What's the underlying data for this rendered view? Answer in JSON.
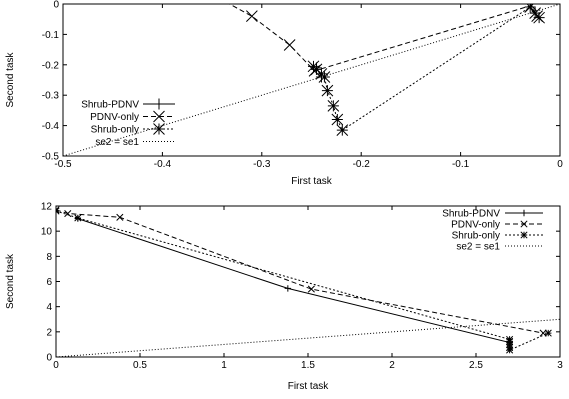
{
  "chart_data": [
    {
      "type": "line",
      "xlabel": "First task",
      "ylabel": "Second task",
      "xlim": [
        -0.5,
        0
      ],
      "ylim": [
        -0.5,
        0
      ],
      "x_ticks": [
        -0.5,
        -0.4,
        -0.3,
        -0.2,
        -0.1,
        0
      ],
      "x_tick_labels": [
        "-0.5",
        "-0.4",
        "-0.3",
        "-0.2",
        "-0.1",
        "0"
      ],
      "y_ticks": [
        -0.5,
        -0.4,
        -0.3,
        -0.2,
        -0.1,
        0
      ],
      "y_tick_labels": [
        "-0.5",
        "-0.4",
        "-0.3",
        "-0.2",
        "-0.1",
        "0"
      ],
      "legend_position": "left",
      "series": [
        {
          "name": "Shrub-PDNV",
          "style": "solid",
          "marker": "plus",
          "points": [
            [
              -0.245,
              -0.21
            ],
            [
              -0.24,
              -0.24
            ]
          ]
        },
        {
          "name": "PDNV-only",
          "style": "dashed",
          "marker": "cross",
          "points": [
            [
              -0.4,
              0.12
            ],
            [
              -0.31,
              -0.04
            ],
            [
              -0.272,
              -0.135
            ],
            [
              -0.247,
              -0.22
            ],
            [
              -0.029,
              -0.005
            ],
            [
              -0.023,
              -0.04
            ]
          ]
        },
        {
          "name": "Shrub-only",
          "style": "dotted",
          "marker": "star",
          "points": [
            [
              -0.248,
              -0.205
            ],
            [
              -0.245,
              -0.215
            ],
            [
              -0.24,
              -0.23
            ],
            [
              -0.237,
              -0.24
            ],
            [
              -0.234,
              -0.285
            ],
            [
              -0.228,
              -0.335
            ],
            [
              -0.224,
              -0.38
            ],
            [
              -0.219,
              -0.415
            ],
            [
              -0.03,
              -0.01
            ],
            [
              -0.025,
              -0.03
            ],
            [
              -0.021,
              -0.045
            ]
          ]
        },
        {
          "name": "se2 = se1",
          "style": "fine-dotted",
          "marker": "none",
          "points": [
            [
              -0.5,
              -0.5
            ],
            [
              0,
              0
            ]
          ]
        }
      ]
    },
    {
      "type": "line",
      "xlabel": "First task",
      "ylabel": "Second task",
      "xlim": [
        0,
        3
      ],
      "ylim": [
        0,
        12
      ],
      "x_ticks": [
        0,
        0.5,
        1,
        1.5,
        2,
        2.5,
        3
      ],
      "x_tick_labels": [
        "0",
        "0.5",
        "1",
        "1.5",
        "2",
        "2.5",
        "3"
      ],
      "y_ticks": [
        0,
        2,
        4,
        6,
        8,
        10,
        12
      ],
      "y_tick_labels": [
        "0",
        "2",
        "4",
        "6",
        "8",
        "10",
        "12"
      ],
      "legend_position": "top-right",
      "series": [
        {
          "name": "Shrub-PDNV",
          "style": "solid",
          "marker": "plus",
          "points": [
            [
              0.13,
              11.0
            ],
            [
              1.38,
              5.45
            ],
            [
              2.7,
              1.15
            ]
          ]
        },
        {
          "name": "PDNV-only",
          "style": "dashed",
          "marker": "cross",
          "points": [
            [
              0.0,
              11.7
            ],
            [
              0.07,
              11.4
            ],
            [
              0.38,
              11.1
            ],
            [
              1.52,
              5.4
            ],
            [
              2.9,
              1.9
            ]
          ]
        },
        {
          "name": "Shrub-only",
          "style": "dotted",
          "marker": "star",
          "points": [
            [
              0.0,
              11.6
            ],
            [
              0.13,
              11.05
            ],
            [
              2.7,
              1.4
            ],
            [
              2.7,
              1.25
            ],
            [
              2.7,
              1.0
            ],
            [
              2.7,
              0.75
            ],
            [
              2.7,
              0.55
            ],
            [
              2.93,
              1.9
            ]
          ]
        },
        {
          "name": "se2 = se1",
          "style": "fine-dotted",
          "marker": "none",
          "points": [
            [
              0,
              0
            ],
            [
              3,
              3
            ]
          ]
        }
      ]
    }
  ]
}
